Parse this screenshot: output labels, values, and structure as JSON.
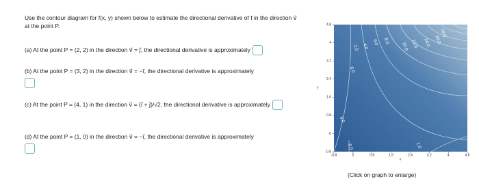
{
  "question": {
    "intro": "Use the contour diagram for f(x, y) shown below to estimate the directional derivative of f in the direction v⃗ at the point P.",
    "parts": [
      "(a) At the point P = (2, 2) in the direction v⃗ = j⃗, the directional derivative is approximately",
      "(b) At the point P = (3, 2) in the direction v⃗ = −i⃗, the directional derivative is approximately",
      "(c) At the point P = (4, 1) in the direction v⃗ = (i⃗ + j⃗)/√2, the directional derivative is approximately",
      "(d) At the point P = (1, 0) in the direction v⃗ = −i⃗, the directional derivative is approximately"
    ]
  },
  "plot": {
    "xlabel": "x",
    "ylabel": "y",
    "xlim": [
      -0.8,
      4.8
    ],
    "ylim": [
      -0.8,
      4.8
    ],
    "xticks": [
      -0.8,
      0,
      0.8,
      1.6,
      2.4,
      3.2,
      4,
      4.8
    ],
    "yticks": [
      -0.8,
      0,
      0.8,
      1.6,
      2.4,
      3.2,
      4,
      4.8
    ],
    "contour_labels": [
      "2.0",
      "4.0",
      "6.0",
      "8.0",
      "10.0",
      "12.0",
      "14.0",
      "16.0",
      "18.0",
      "0.0",
      "0.0",
      "0.0",
      "1.0"
    ],
    "caption": "(Click on graph to enlarge)"
  }
}
